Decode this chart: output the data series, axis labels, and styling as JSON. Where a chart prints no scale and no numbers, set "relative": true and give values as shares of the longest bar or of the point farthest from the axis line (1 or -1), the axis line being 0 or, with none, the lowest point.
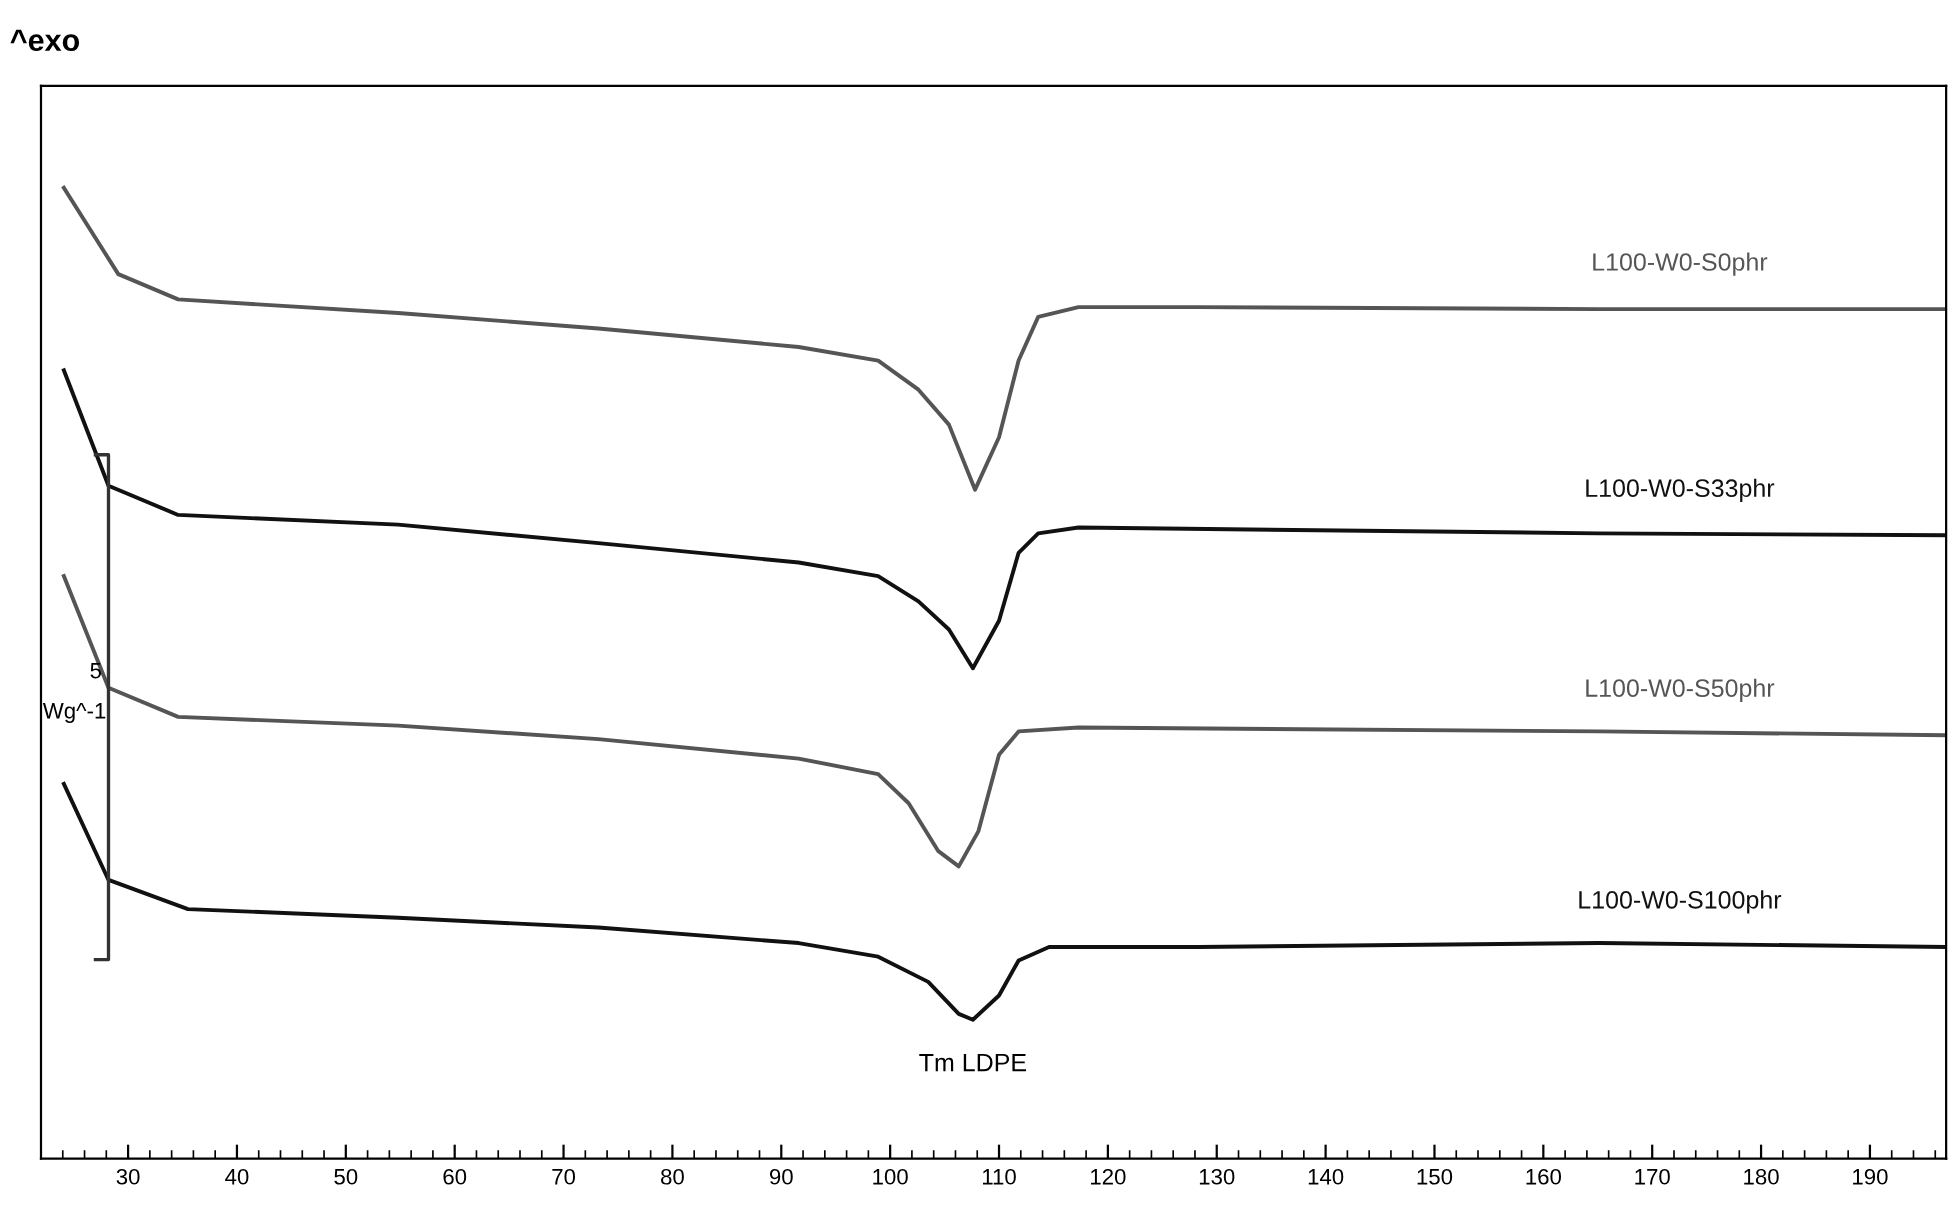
{
  "chart_data": {
    "type": "line",
    "title": "^exo",
    "relative": true,
    "grid": false,
    "legend": false,
    "marker": "none",
    "line_style": "solid",
    "xlim": [
      22,
      197
    ],
    "xticks": [
      30,
      40,
      50,
      60,
      70,
      80,
      90,
      100,
      110,
      120,
      130,
      140,
      150,
      160,
      170,
      180,
      190
    ],
    "annotations": [
      {
        "text": "Tm LDPE",
        "x": 107.6,
        "y": 0.143
      },
      "5",
      "Wg^-1"
    ],
    "series": [
      {
        "name": "L100-W0-S0phr",
        "color": "#555555",
        "x": [
          24.1,
          29.1,
          34.6,
          54.8,
          73.2,
          91.6,
          98.9,
          102.6,
          105.4,
          107.8,
          110.0,
          111.8,
          113.6,
          117.3,
          128.3,
          165.1,
          197
        ],
        "values": [
          1.0,
          0.911,
          0.885,
          0.871,
          0.855,
          0.836,
          0.822,
          0.792,
          0.756,
          0.689,
          0.743,
          0.822,
          0.867,
          0.877,
          0.877,
          0.875,
          0.875
        ]
      },
      {
        "name": "L100-W0-S33phr",
        "color": "#111111",
        "x": [
          24.1,
          28.2,
          34.6,
          54.8,
          73.2,
          91.6,
          98.9,
          102.6,
          105.4,
          107.6,
          110.0,
          111.8,
          113.6,
          117.3,
          165.1,
          197
        ],
        "values": [
          0.812,
          0.693,
          0.663,
          0.653,
          0.634,
          0.614,
          0.6,
          0.574,
          0.545,
          0.505,
          0.554,
          0.624,
          0.644,
          0.65,
          0.644,
          0.642
        ]
      },
      {
        "name": "L100-W0-S50phr",
        "color": "#555555",
        "x": [
          24.1,
          28.2,
          34.6,
          54.8,
          73.2,
          91.6,
          98.9,
          101.7,
          104.4,
          106.3,
          108.1,
          110.0,
          111.8,
          117.3,
          165.1,
          197
        ],
        "values": [
          0.6,
          0.485,
          0.455,
          0.446,
          0.432,
          0.412,
          0.396,
          0.366,
          0.317,
          0.301,
          0.337,
          0.416,
          0.44,
          0.444,
          0.44,
          0.436
        ]
      },
      {
        "name": "L100-W0-S100phr",
        "color": "#111111",
        "x": [
          24.1,
          28.2,
          35.5,
          54.8,
          73.2,
          91.6,
          98.9,
          103.5,
          106.3,
          107.6,
          110.0,
          111.8,
          114.6,
          128.3,
          165.1,
          197
        ],
        "values": [
          0.386,
          0.287,
          0.257,
          0.248,
          0.238,
          0.222,
          0.208,
          0.182,
          0.149,
          0.143,
          0.168,
          0.204,
          0.218,
          0.218,
          0.222,
          0.218
        ]
      }
    ]
  }
}
